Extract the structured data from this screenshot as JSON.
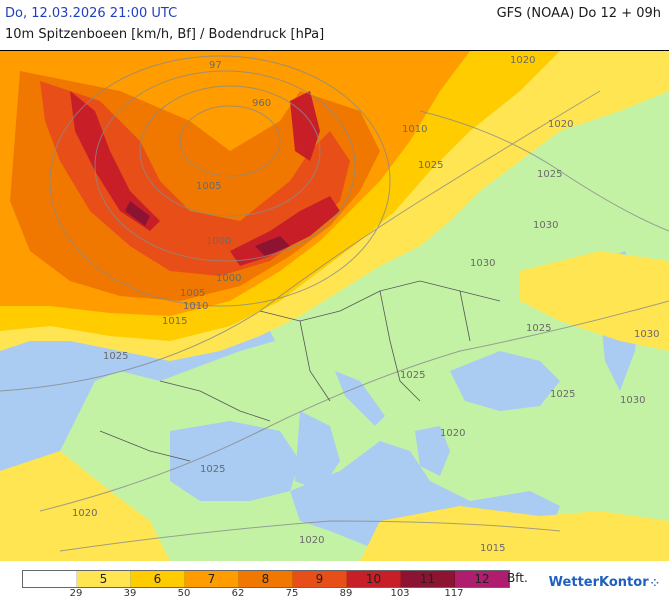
{
  "header": {
    "datetime": "Do, 12.03.2026 21:00 UTC",
    "model_run": "GFS (NOAA) Do 12 + 09h",
    "subtitle": "10m Spitzenboeen [km/h, Bf] / Bodendruck [hPa]"
  },
  "colors": {
    "sea": "#aacbf2",
    "land": "#c4f2a5",
    "bf5": "#ffe552",
    "bf6": "#ffcc00",
    "bf7": "#ff9c00",
    "bf8": "#f07800",
    "bf9": "#e84e17",
    "bf10": "#c81e28",
    "bf11": "#8c1432",
    "bf12": "#b01c6e"
  },
  "isobar_labels": [
    "960",
    "97",
    "1000",
    "1005",
    "1005",
    "1010",
    "1015",
    "1025",
    "1025",
    "1020",
    "1020",
    "1020",
    "1010",
    "1025",
    "1030",
    "1025",
    "1025",
    "1030",
    "1025",
    "1025",
    "1020",
    "1030",
    "1020",
    "1015",
    "1030",
    "1000"
  ],
  "legend": {
    "bft_labels": [
      "",
      "5",
      "6",
      "7",
      "8",
      "9",
      "10",
      "11",
      "12"
    ],
    "unit": "Bft.",
    "kmh_labels": [
      "29",
      "39",
      "50",
      "62",
      "75",
      "89",
      "103",
      "117"
    ]
  },
  "brand": {
    "name": "WetterKontor"
  }
}
